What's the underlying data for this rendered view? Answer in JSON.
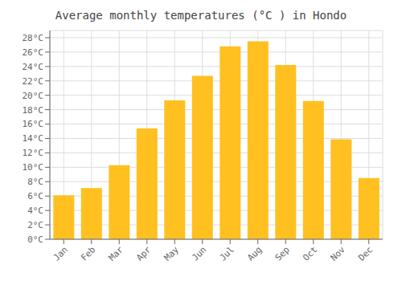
{
  "chart_data": {
    "type": "bar",
    "title": "Average monthly temperatures (°C ) in Hondo",
    "categories": [
      "Jan",
      "Feb",
      "Mar",
      "Apr",
      "May",
      "Jun",
      "Jul",
      "Aug",
      "Sep",
      "Oct",
      "Nov",
      "Dec"
    ],
    "values": [
      6.1,
      7.1,
      10.3,
      15.4,
      19.3,
      22.7,
      26.8,
      27.5,
      24.2,
      19.2,
      13.9,
      8.5
    ],
    "color": "#FFC020",
    "ylim": [
      0,
      29
    ],
    "yticks": [
      {
        "value": 0,
        "label": "0°C"
      },
      {
        "value": 2,
        "label": "2°C"
      },
      {
        "value": 4,
        "label": "4°C"
      },
      {
        "value": 6,
        "label": "6°C"
      },
      {
        "value": 8,
        "label": "8°C"
      },
      {
        "value": 10,
        "label": "10°C"
      },
      {
        "value": 12,
        "label": "12°C"
      },
      {
        "value": 14,
        "label": "14°C"
      },
      {
        "value": 16,
        "label": "16°C"
      },
      {
        "value": 18,
        "label": "18°C"
      },
      {
        "value": 20,
        "label": "20°C"
      },
      {
        "value": 22,
        "label": "22°C"
      },
      {
        "value": 24,
        "label": "24°C"
      },
      {
        "value": 26,
        "label": "26°C"
      },
      {
        "value": 28,
        "label": "28°C"
      }
    ],
    "grid": true
  }
}
